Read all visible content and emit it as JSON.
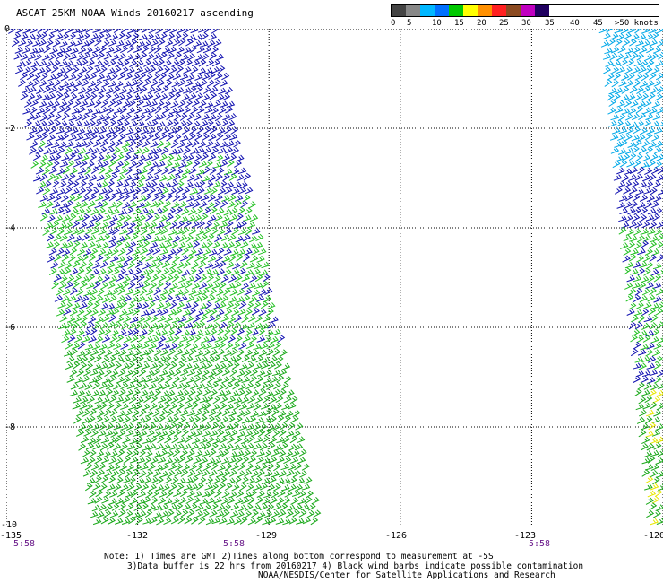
{
  "title": "ASCAT 25KM NOAA Winds 20160217 ascending",
  "legend": {
    "labels": [
      "0",
      "5",
      "10",
      "15",
      "20",
      "25",
      "30",
      "35",
      "40",
      "45",
      ">50 knots"
    ],
    "colors": [
      "#444444",
      "#888888",
      "#00b7ff",
      "#0070ff",
      "#00c800",
      "#ffff00",
      "#ff9000",
      "#ff2020",
      "#8b4a20",
      "#c000c0",
      "#200060"
    ]
  },
  "axes": {
    "lat_labels": [
      "0",
      "-2",
      "-4",
      "-6",
      "-8",
      "-10"
    ],
    "lon_labels": [
      "-135",
      "-132",
      "-129",
      "-126",
      "-123",
      "-120"
    ],
    "lon_range": [
      -135,
      -120
    ],
    "lat_range": [
      -10,
      0
    ]
  },
  "times": [
    "5:58",
    "5:58",
    "5:58"
  ],
  "notes": [
    "Note: 1) Times are GMT 2)Times along bottom correspond to measurement at -5S",
    "3)Data buffer is 22 hrs from 20160217 4) Black wind barbs indicate possible contamination",
    "NOAA/NESDIS/Center for Satellite Applications and Research"
  ],
  "swaths": [
    {
      "name": "west-swath",
      "corners_lonlat": [
        [
          -135,
          0
        ],
        [
          -130.2,
          0
        ],
        [
          -127.8,
          -10
        ],
        [
          -133.1,
          -10
        ]
      ],
      "zones": [
        {
          "lat_from": 0,
          "lat_to": -2.3,
          "color": "#1010b0"
        },
        {
          "lat_from": -2.3,
          "lat_to": -3.5,
          "color": "#1010b0",
          "mix": "#22c022"
        },
        {
          "lat_from": -3.5,
          "lat_to": -6.5,
          "color": "#22c022",
          "mix": "#1010b0"
        },
        {
          "lat_from": -6.5,
          "lat_to": -10,
          "color": "#18a818"
        }
      ]
    },
    {
      "name": "east-swath",
      "corners_lonlat": [
        [
          -121.5,
          0
        ],
        [
          -120,
          0
        ],
        [
          -120,
          -10
        ],
        [
          -120.4,
          -10
        ]
      ],
      "zones": [
        {
          "lat_from": 0,
          "lat_to": -2.8,
          "color": "#00a8e8"
        },
        {
          "lat_from": -2.8,
          "lat_to": -4.0,
          "color": "#1010b0"
        },
        {
          "lat_from": -4.0,
          "lat_to": -7.2,
          "color": "#22c022",
          "mix": "#1010b0"
        },
        {
          "lat_from": -7.2,
          "lat_to": -10,
          "color": "#18a818",
          "mix": "#e8e800"
        }
      ]
    }
  ]
}
